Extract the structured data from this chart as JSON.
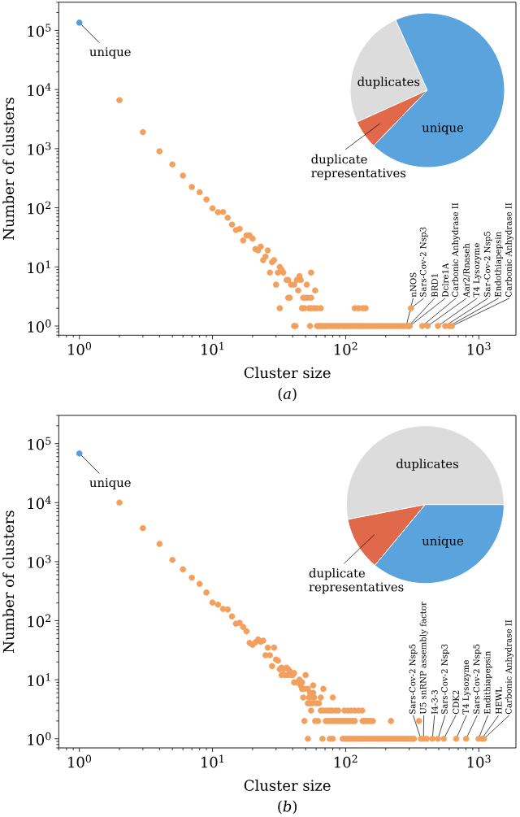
{
  "chart_data": [
    {
      "type": "scatter",
      "xlabel": "Cluster size",
      "ylabel": "Number of clusters",
      "log": "xy",
      "marker": "circle",
      "xlim": [
        0.7,
        1900
      ],
      "ylim": [
        0.7,
        300000
      ],
      "xticks": [
        {
          "value": 1,
          "label": "10$^{0}$"
        },
        {
          "value": 10,
          "label": "10$^{1}$"
        },
        {
          "value": 100,
          "label": "10$^{2}$"
        },
        {
          "value": 1000,
          "label": "10$^{3}$"
        }
      ],
      "yticks": [
        {
          "value": 1,
          "label": "10$^{0}$"
        },
        {
          "value": 10,
          "label": "10$^{1}$"
        },
        {
          "value": 100,
          "label": "10$^{2}$"
        },
        {
          "value": 1000,
          "label": "10$^{3}$"
        },
        {
          "value": 10000,
          "label": "10$^{4}$"
        },
        {
          "value": 100000,
          "label": "10$^{5}$"
        }
      ],
      "series": [
        {
          "color": "#5b9bd5",
          "x": [
            1
          ],
          "values": [
            135000
          ]
        },
        {
          "color": "#f2a05e",
          "x": [
            2,
            3,
            4,
            5,
            6,
            7,
            8,
            9,
            10,
            11,
            12,
            13,
            14,
            15,
            16,
            17,
            18,
            19,
            20,
            21,
            22,
            23,
            24,
            25,
            26,
            27,
            28,
            29,
            30,
            31,
            32,
            32,
            33,
            34,
            36,
            37,
            37,
            38,
            39,
            41,
            43,
            44,
            45,
            46,
            47,
            48,
            49,
            50,
            51,
            52,
            53,
            55,
            55,
            55,
            58,
            59,
            61,
            65,
            41,
            42,
            54,
            61,
            63,
            65,
            67,
            70,
            72,
            75,
            78,
            81,
            84,
            87,
            90,
            94,
            97,
            101,
            105,
            109,
            113,
            118,
            123,
            128,
            133,
            138,
            144,
            150,
            158,
            165,
            172,
            180,
            188,
            197,
            206,
            216,
            226,
            237,
            248,
            260,
            272,
            285,
            297,
            303,
            376,
            413,
            493,
            559,
            600,
            629,
            117,
            125,
            134,
            141,
            309
          ],
          "values": [
            6600,
            1900,
            900,
            540,
            350,
            225,
            183,
            138,
            98,
            84,
            85,
            68,
            52,
            42,
            44,
            28,
            34,
            34,
            30,
            20,
            19,
            22,
            13,
            15,
            19,
            8,
            12,
            13,
            5,
            8,
            10,
            2,
            9,
            8,
            6,
            6,
            3,
            3,
            5,
            5,
            6,
            4,
            7,
            6,
            2,
            3,
            2,
            3,
            5,
            3,
            2,
            8,
            3,
            2,
            2,
            4,
            2,
            2,
            1,
            1,
            1,
            1,
            1,
            1,
            1,
            1,
            1,
            1,
            1,
            1,
            1,
            1,
            1,
            1,
            1,
            1,
            1,
            1,
            1,
            1,
            1,
            1,
            1,
            1,
            1,
            1,
            1,
            1,
            1,
            1,
            1,
            1,
            1,
            1,
            1,
            1,
            1,
            1,
            1,
            1,
            1,
            1,
            1,
            1,
            1,
            1,
            1,
            1,
            2,
            2,
            2,
            2,
            2
          ]
        }
      ],
      "annotations": [
        {
          "text": "unique",
          "x": 1,
          "y": 135000
        },
        {
          "text": "nNOS",
          "x": 285,
          "y": 1
        },
        {
          "text": "Sars-Cov-2 Nsp3",
          "x": 309,
          "y": 2
        },
        {
          "text": "BRD1",
          "x": 297,
          "y": 1
        },
        {
          "text": "Dclre1A",
          "x": 303,
          "y": 1
        },
        {
          "text": "Carbonic Anhydrase II",
          "x": 376,
          "y": 1
        },
        {
          "text": "Aar2/Rnaseh",
          "x": 413,
          "y": 1
        },
        {
          "text": "T4 Lysozyme",
          "x": 493,
          "y": 1
        },
        {
          "text": "Sar-Cov-2 Nsp5",
          "x": 559,
          "y": 1
        },
        {
          "text": "Endothiapepsin",
          "x": 600,
          "y": 1
        },
        {
          "text": "Carbonic Anhydrase II",
          "x": 629,
          "y": 1
        },
        "(*a*)"
      ]
    },
    {
      "type": "pie",
      "categories": [
        "duplicates",
        "duplicate representatives",
        "unique"
      ],
      "values": [
        25,
        6,
        69
      ],
      "colors": [
        "#dcdcdc",
        "#e0694b",
        "#5ba3dc"
      ]
    },
    {
      "type": "scatter",
      "xlabel": "Cluster size",
      "ylabel": "Number of clusters",
      "log": "xy",
      "marker": "circle",
      "xlim": [
        0.7,
        1900
      ],
      "ylim": [
        0.7,
        300000
      ],
      "xticks": [
        {
          "value": 1,
          "label": "10$^{0}$"
        },
        {
          "value": 10,
          "label": "10$^{1}$"
        },
        {
          "value": 100,
          "label": "10$^{2}$"
        },
        {
          "value": 1000,
          "label": "10$^{3}$"
        }
      ],
      "yticks": [
        {
          "value": 1,
          "label": "10$^{0}$"
        },
        {
          "value": 10,
          "label": "10$^{1}$"
        },
        {
          "value": 100,
          "label": "10$^{2}$"
        },
        {
          "value": 1000,
          "label": "10$^{3}$"
        },
        {
          "value": 10000,
          "label": "10$^{4}$"
        },
        {
          "value": 100000,
          "label": "10$^{5}$"
        }
      ],
      "series": [
        {
          "color": "#5b9bd5",
          "x": [
            1
          ],
          "values": [
            68000
          ]
        },
        {
          "color": "#f2a05e",
          "x": [
            2,
            3,
            4,
            5,
            6,
            7,
            8,
            9,
            10,
            11,
            12,
            13,
            14,
            15,
            16,
            17,
            18,
            19,
            20,
            21,
            22,
            23,
            24,
            25,
            26,
            27,
            28,
            29,
            30,
            31,
            32,
            33,
            33,
            34,
            35,
            36,
            37,
            37,
            38,
            39,
            40,
            41,
            41,
            43,
            45,
            46,
            47,
            47,
            49,
            52,
            54,
            57,
            50,
            57,
            68,
            48,
            52,
            53,
            54,
            56,
            57,
            58,
            60,
            63,
            65,
            80,
            55,
            65,
            68,
            72,
            76,
            79,
            84,
            88,
            98,
            104,
            110,
            117,
            125,
            133,
            49,
            59,
            62,
            71,
            74,
            77,
            80,
            83,
            87,
            90,
            94,
            97,
            101,
            105,
            109,
            113,
            117,
            134,
            138,
            143,
            148,
            154,
            160,
            219,
            355,
            52,
            67,
            76,
            80,
            95,
            99,
            102,
            106,
            110,
            115,
            119,
            124,
            128,
            133,
            138,
            144,
            149,
            155,
            161,
            167,
            174,
            180,
            187,
            195,
            202,
            210,
            218,
            227,
            235,
            245,
            254,
            264,
            274,
            285,
            296,
            307,
            318,
            326,
            367,
            384,
            407,
            448,
            493,
            546,
            676,
            803,
            995,
            1053,
            1092
          ],
          "values": [
            10000,
            3700,
            2000,
            1070,
            740,
            535,
            420,
            300,
            203,
            187,
            158,
            155,
            118,
            89,
            92,
            78,
            66,
            42,
            39,
            43,
            48,
            44,
            46,
            26,
            35,
            26,
            17,
            35,
            22,
            21,
            15,
            16,
            12,
            15,
            12,
            16,
            15,
            12,
            14,
            12,
            12,
            13,
            9,
            9,
            10,
            8,
            9,
            7,
            7,
            7,
            6,
            6,
            12,
            8,
            7,
            5,
            4,
            5,
            4,
            4,
            5,
            5,
            4,
            4,
            5,
            5,
            3,
            3,
            3,
            3,
            3,
            3,
            3,
            3,
            3,
            3,
            3,
            3,
            3,
            3,
            2,
            2,
            2,
            2,
            2,
            2,
            2,
            2,
            2,
            2,
            2,
            2,
            2,
            2,
            2,
            2,
            2,
            2,
            2,
            2,
            2,
            2,
            2,
            2,
            2,
            1,
            1,
            1,
            1,
            1,
            1,
            1,
            1,
            1,
            1,
            1,
            1,
            1,
            1,
            1,
            1,
            1,
            1,
            1,
            1,
            1,
            1,
            1,
            1,
            1,
            1,
            1,
            1,
            1,
            1,
            1,
            1,
            1,
            1,
            1,
            1,
            1,
            1,
            1,
            1,
            1,
            1,
            1,
            1,
            1,
            1,
            1,
            1,
            1
          ]
        }
      ],
      "annotations": [
        {
          "text": "unique",
          "x": 1,
          "y": 68000
        },
        {
          "text": "Sars-Cov-2 Nsp5",
          "x": 367,
          "y": 1
        },
        {
          "text": "U5 snRNP assembly factor",
          "x": 384,
          "y": 1
        },
        {
          "text": "I4-3-3",
          "x": 448,
          "y": 1
        },
        {
          "text": "Sars-Cov-2 Nsp3",
          "x": 493,
          "y": 1
        },
        {
          "text": "CDK2",
          "x": 546,
          "y": 1
        },
        {
          "text": "T4 Lysozyme",
          "x": 676,
          "y": 1
        },
        {
          "text": "Sars-Cov-2 Nsp5",
          "x": 803,
          "y": 1
        },
        {
          "text": "Endithiapepsin",
          "x": 995,
          "y": 1
        },
        {
          "text": "HEWL",
          "x": 1053,
          "y": 1
        },
        {
          "text": "Carbonic Anhydrase II",
          "x": 1092,
          "y": 1
        },
        "(*b*)"
      ]
    },
    {
      "type": "pie",
      "categories": [
        "duplicates",
        "duplicate representatives",
        "unique"
      ],
      "values": [
        53,
        11,
        36
      ],
      "colors": [
        "#dcdcdc",
        "#e0694b",
        "#5ba3dc"
      ]
    }
  ]
}
